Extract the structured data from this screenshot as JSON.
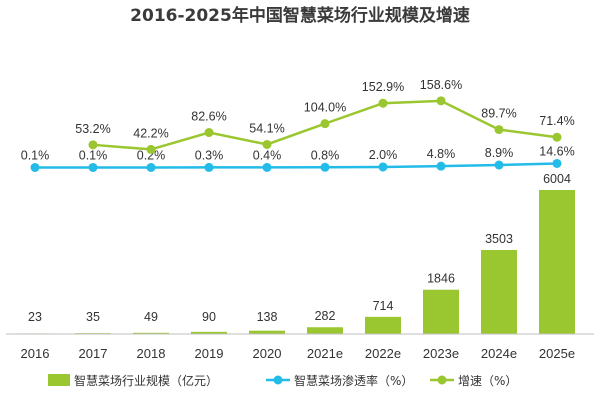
{
  "chart_data": {
    "type": "bar+line",
    "title": "2016-2025年中国智慧菜场行业规模及增速",
    "categories": [
      "2016",
      "2017",
      "2018",
      "2019",
      "2020",
      "2021e",
      "2022e",
      "2023e",
      "2024e",
      "2025e"
    ],
    "bars": {
      "name": "智慧菜场行业规模（亿元）",
      "color": "#9ac62f",
      "values": [
        23,
        35,
        49,
        90,
        138,
        282,
        714,
        1846,
        3503,
        6004
      ],
      "labels": [
        "23",
        "35",
        "49",
        "90",
        "138",
        "282",
        "714",
        "1846",
        "3503",
        "6004"
      ]
    },
    "penetration": {
      "name": "智慧菜场渗透率（%）",
      "color": "#23bce9",
      "values": [
        0.1,
        0.1,
        0.2,
        0.3,
        0.4,
        0.8,
        2.0,
        4.8,
        8.9,
        14.6
      ],
      "labels": [
        "0.1%",
        "0.1%",
        "0.2%",
        "0.3%",
        "0.4%",
        "0.8%",
        "2.0%",
        "4.8%",
        "8.9%",
        "14.6%"
      ]
    },
    "growth": {
      "name": "增速（%）",
      "color": "#9ac62f",
      "values": [
        null,
        53.2,
        42.2,
        82.6,
        54.1,
        104.0,
        152.9,
        158.6,
        89.7,
        71.4
      ],
      "labels": [
        "",
        "53.2%",
        "42.2%",
        "82.6%",
        "54.1%",
        "104.0%",
        "152.9%",
        "158.6%",
        "89.7%",
        "71.4%"
      ]
    },
    "legend_position": "bottom",
    "grid": false
  }
}
